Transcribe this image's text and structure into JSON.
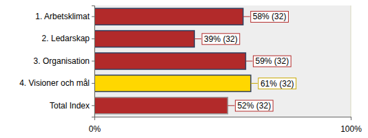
{
  "chart_data": {
    "type": "bar",
    "orientation": "horizontal",
    "categories": [
      "1. Arbetsklimat",
      "2. Ledarskap",
      "3. Organisation",
      "4. Visioner och mål",
      "Total Index"
    ],
    "values": [
      58,
      39,
      59,
      61,
      52
    ],
    "value_labels": [
      "58% (32)",
      "39% (32)",
      "59% (32)",
      "61% (32)",
      "52% (32)"
    ],
    "colors": [
      "#b22a2a",
      "#b22a2a",
      "#b22a2a",
      "#ffd700",
      "#b22a2a"
    ],
    "xlim": [
      0,
      100
    ],
    "xticks": [
      {
        "value": 0,
        "label": "0%"
      },
      {
        "value": 100,
        "label": "100%"
      }
    ],
    "grid": true,
    "data_labels": true
  }
}
